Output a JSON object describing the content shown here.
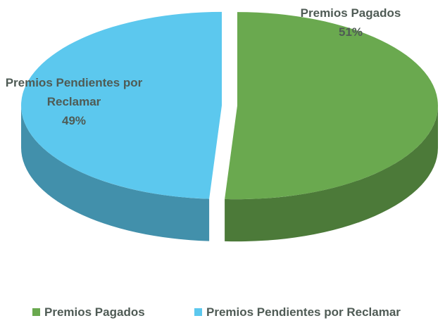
{
  "chart_data": {
    "type": "pie3d",
    "categories": [
      "Premios Pagados",
      "Premios Pendientes por Reclamar"
    ],
    "values": [
      51,
      49
    ],
    "value_labels": [
      "51%",
      "49%"
    ],
    "colors": [
      "#6aa94f",
      "#5cc8ee"
    ],
    "legend": "bottom"
  }
}
